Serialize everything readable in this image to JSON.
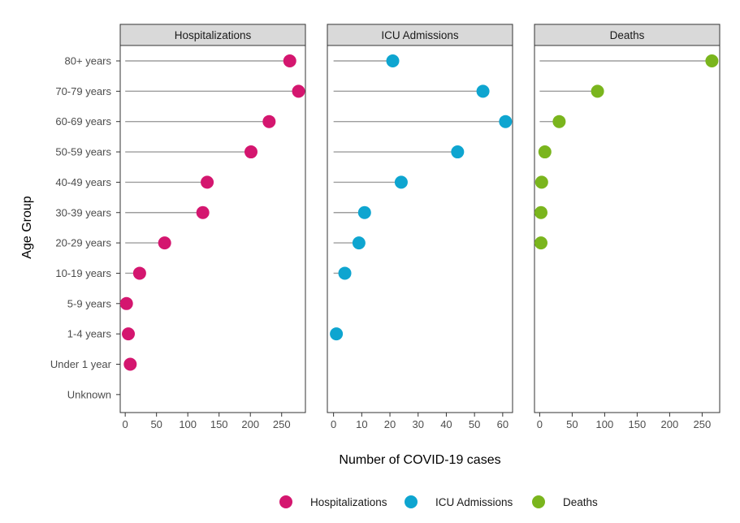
{
  "chart_data": {
    "type": "lollipop",
    "xlabel": "Number of COVID-19 cases",
    "ylabel": "Age Group",
    "categories": [
      "80+ years",
      "70-79 years",
      "60-69 years",
      "50-59 years",
      "40-49 years",
      "30-39 years",
      "20-29 years",
      "10-19 years",
      "5-9 years",
      "1-4 years",
      "Under 1 year",
      "Unknown"
    ],
    "legend_position": "bottom",
    "grid": false,
    "panels": [
      {
        "name": "Hospitalizations",
        "color": "#D4166F",
        "xlim": [
          -8,
          288
        ],
        "ticks": [
          0,
          50,
          100,
          150,
          200,
          250
        ],
        "values": [
          263,
          277,
          230,
          201,
          131,
          124,
          63,
          23,
          2,
          5,
          8,
          null
        ]
      },
      {
        "name": "ICU Admissions",
        "color": "#0EA5D0",
        "xlim": [
          -2.2,
          63.5
        ],
        "ticks": [
          0,
          10,
          20,
          30,
          40,
          50,
          60
        ],
        "values": [
          21,
          53,
          61,
          44,
          24,
          11,
          9,
          4,
          null,
          1,
          null,
          null
        ]
      },
      {
        "name": "Deaths",
        "color": "#7AB51D",
        "xlim": [
          -8,
          277
        ],
        "ticks": [
          0,
          50,
          100,
          150,
          200,
          250
        ],
        "values": [
          265,
          89,
          30,
          8,
          3,
          2,
          2,
          null,
          null,
          null,
          null,
          null
        ]
      }
    ]
  }
}
